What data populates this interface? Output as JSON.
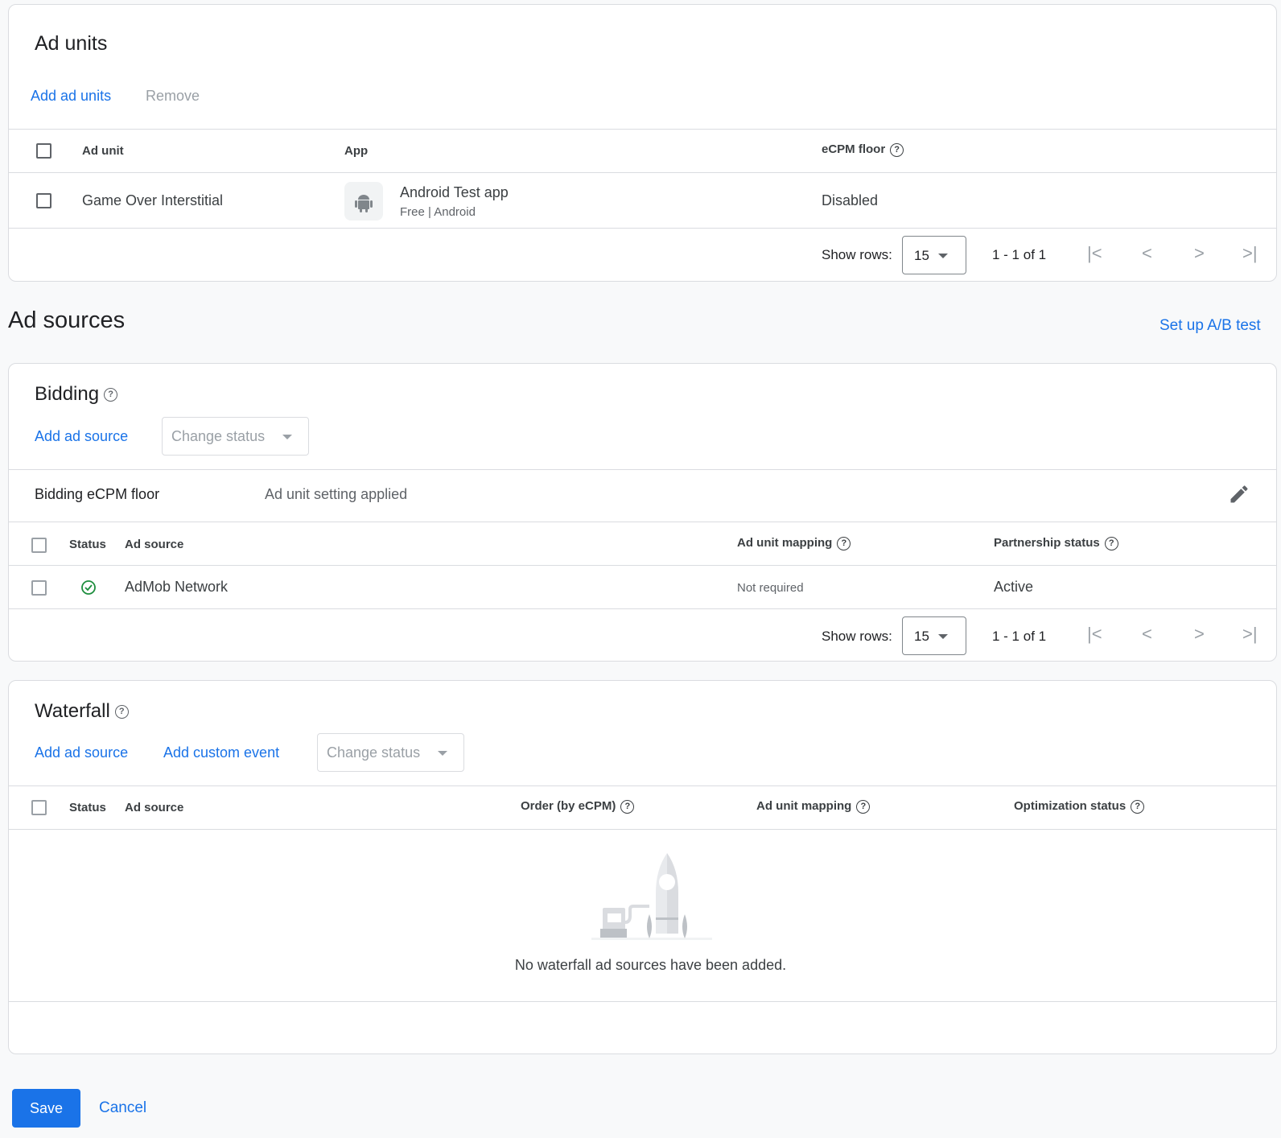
{
  "ad_units": {
    "title": "Ad units",
    "add_label": "Add ad units",
    "remove_label": "Remove",
    "columns": [
      "Ad unit",
      "App",
      "eCPM floor"
    ],
    "rows": [
      {
        "ad_unit": "Game Over Interstitial",
        "app_name": "Android Test app",
        "app_meta": "Free | Android",
        "ecpm_floor": "Disabled"
      }
    ],
    "show_rows_label": "Show rows:",
    "rows_per_page": "15",
    "range": "1 - 1 of 1"
  },
  "ad_sources": {
    "title": "Ad sources",
    "ab_test_label": "Set up A/B test"
  },
  "bidding": {
    "title": "Bidding",
    "add_label": "Add ad source",
    "change_status": "Change status",
    "floor_label": "Bidding eCPM floor",
    "floor_value": "Ad unit setting applied",
    "columns": [
      "Status",
      "Ad source",
      "Ad unit mapping",
      "Partnership status"
    ],
    "rows": [
      {
        "status": "active",
        "ad_source": "AdMob Network",
        "mapping": "Not required",
        "partnership": "Active"
      }
    ],
    "show_rows_label": "Show rows:",
    "rows_per_page": "15",
    "range": "1 - 1 of 1"
  },
  "waterfall": {
    "title": "Waterfall",
    "add_label": "Add ad source",
    "add_custom_label": "Add custom event",
    "change_status": "Change status",
    "columns": [
      "Status",
      "Ad source",
      "Order (by eCPM)",
      "Ad unit mapping",
      "Optimization status"
    ],
    "empty_message": "No waterfall ad sources have been added."
  },
  "footer": {
    "save_label": "Save",
    "cancel_label": "Cancel"
  },
  "colors": {
    "accent": "#1a73e8",
    "success": "#1e8e3e",
    "background": "#f8f9fa"
  }
}
